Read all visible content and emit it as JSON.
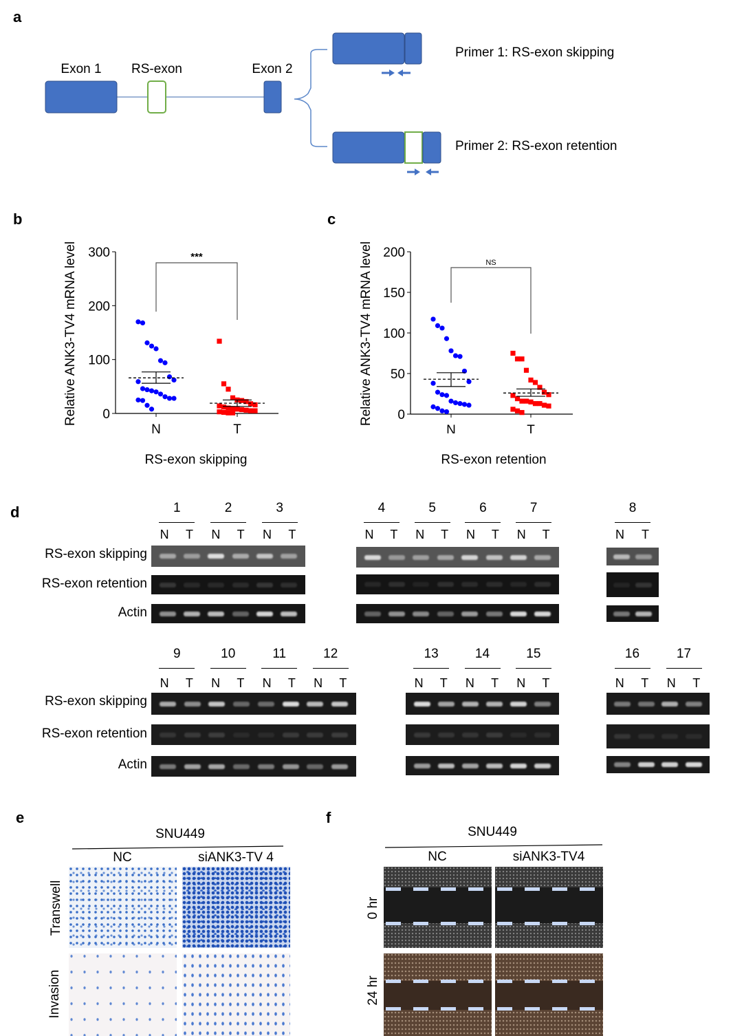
{
  "panel_letters": {
    "a": "a",
    "b": "b",
    "c": "c",
    "d": "d",
    "e": "e",
    "f": "f"
  },
  "diagram": {
    "exon1": "Exon 1",
    "rs_exon": "RS-exon",
    "exon2": "Exon 2",
    "primer1": "Primer 1: RS-exon skipping",
    "primer2": "Primer 2: RS-exon retention",
    "colors": {
      "exon": "#4472c4",
      "rs_exon": "#70ad47",
      "arrow": "#4472c4"
    }
  },
  "chart_data": [
    {
      "type": "scatter",
      "title": "RS-exon skipping",
      "ylabel": "Relative ANK3-TV4 mRNA level",
      "ylim": [
        0,
        300
      ],
      "yticks": [
        0,
        100,
        200,
        300
      ],
      "categories": [
        "N",
        "T"
      ],
      "significance": "***",
      "series": [
        {
          "name": "N",
          "color": "#0000ff",
          "marker": "circle",
          "values": [
            170,
            168,
            131,
            125,
            120,
            98,
            94,
            68,
            62,
            59,
            46,
            44,
            42,
            40,
            36,
            31,
            28,
            28,
            25,
            24,
            15,
            8
          ],
          "mean": 66,
          "sem": [
            56,
            77
          ]
        },
        {
          "name": "T",
          "color": "#ff0000",
          "marker": "square",
          "values": [
            134,
            55,
            45,
            29,
            25,
            24,
            22,
            18,
            16,
            14,
            12,
            10,
            9,
            8,
            7,
            6,
            5,
            5,
            3,
            2,
            1,
            1
          ],
          "mean": 19,
          "sem": [
            13,
            25
          ]
        }
      ]
    },
    {
      "type": "scatter",
      "title": "RS-exon retention",
      "ylabel": "Relative ANK3-TV4 mRNA level",
      "ylim": [
        0,
        200
      ],
      "yticks": [
        0,
        50,
        100,
        150,
        200
      ],
      "categories": [
        "N",
        "T"
      ],
      "significance": "NS",
      "series": [
        {
          "name": "N",
          "color": "#0000ff",
          "marker": "circle",
          "values": [
            117,
            109,
            106,
            93,
            78,
            72,
            71,
            53,
            40,
            38,
            27,
            24,
            23,
            16,
            14,
            13,
            12,
            11,
            9,
            7,
            4,
            3
          ],
          "mean": 43,
          "sem": [
            34,
            51
          ]
        },
        {
          "name": "T",
          "color": "#ff0000",
          "marker": "square",
          "values": [
            75,
            68,
            68,
            54,
            42,
            39,
            33,
            27,
            24,
            23,
            19,
            16,
            16,
            15,
            13,
            13,
            11,
            10,
            6,
            4,
            2
          ],
          "mean": 26,
          "sem": [
            22,
            31
          ]
        }
      ]
    }
  ],
  "gel": {
    "row_labels": [
      "RS-exon skipping",
      "RS-exon retention",
      "Actin"
    ],
    "lane_n": "N",
    "lane_t": "T",
    "row1_samples": [
      "1",
      "2",
      "3",
      "4",
      "5",
      "6",
      "7",
      "8"
    ],
    "row2_samples": [
      "9",
      "10",
      "11",
      "12",
      "13",
      "14",
      "15",
      "16",
      "17"
    ]
  },
  "panel_e": {
    "cell_line": "SNU449",
    "col_nc": "NC",
    "col_si": "siANK3-TV 4",
    "row_transwell": "Transwell",
    "row_invasion": "Invasion"
  },
  "panel_f": {
    "cell_line": "SNU449",
    "col_nc": "NC",
    "col_si": "siANK3-TV4",
    "row_0hr": "0 hr",
    "row_24hr": "24 hr"
  }
}
